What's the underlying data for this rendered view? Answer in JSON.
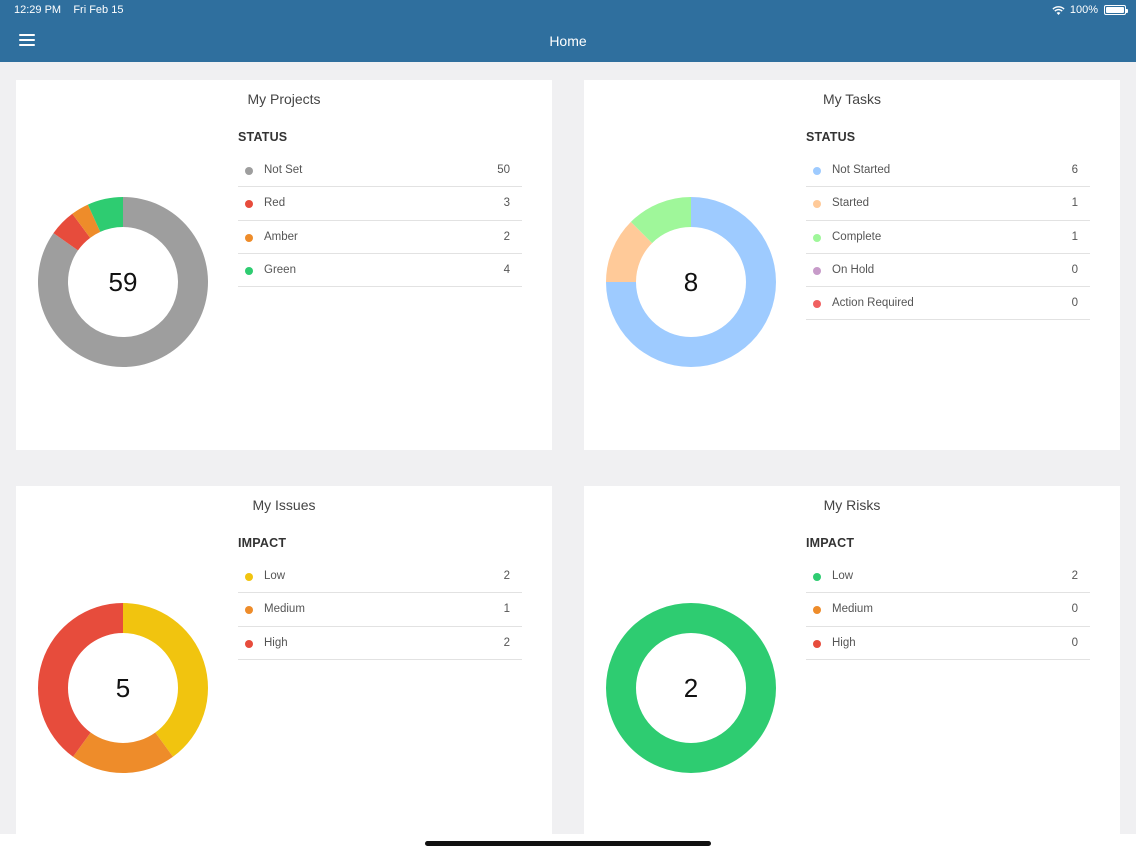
{
  "status_bar": {
    "time": "12:29 PM",
    "date": "Fri Feb 15",
    "battery": "100%"
  },
  "nav": {
    "title": "Home",
    "menu_icon": "hamburger-icon"
  },
  "cards": [
    {
      "title": "My Projects",
      "heading": "STATUS",
      "total": "59",
      "items": [
        {
          "label": "Not Set",
          "value": 50,
          "color": "#9e9e9e"
        },
        {
          "label": "Red",
          "value": 3,
          "color": "#e74c3c"
        },
        {
          "label": "Amber",
          "value": 2,
          "color": "#ee8c2a"
        },
        {
          "label": "Green",
          "value": 4,
          "color": "#2ecc71"
        }
      ]
    },
    {
      "title": "My Tasks",
      "heading": "STATUS",
      "total": "8",
      "items": [
        {
          "label": "Not Started",
          "value": 6,
          "color": "#9ecbff"
        },
        {
          "label": "Started",
          "value": 1,
          "color": "#ffca99"
        },
        {
          "label": "Complete",
          "value": 1,
          "color": "#9ff79a"
        },
        {
          "label": "On Hold",
          "value": 0,
          "color": "#c79bc9"
        },
        {
          "label": "Action Required",
          "value": 0,
          "color": "#f06060"
        }
      ]
    },
    {
      "title": "My Issues",
      "heading": "IMPACT",
      "total": "5",
      "items": [
        {
          "label": "Low",
          "value": 2,
          "color": "#f1c40f"
        },
        {
          "label": "Medium",
          "value": 1,
          "color": "#ee8c2a"
        },
        {
          "label": "High",
          "value": 2,
          "color": "#e74c3c"
        }
      ]
    },
    {
      "title": "My Risks",
      "heading": "IMPACT",
      "total": "2",
      "items": [
        {
          "label": "Low",
          "value": 2,
          "color": "#2ecc71"
        },
        {
          "label": "Medium",
          "value": 0,
          "color": "#ee8c2a"
        },
        {
          "label": "High",
          "value": 0,
          "color": "#e74c3c"
        }
      ]
    }
  ]
}
